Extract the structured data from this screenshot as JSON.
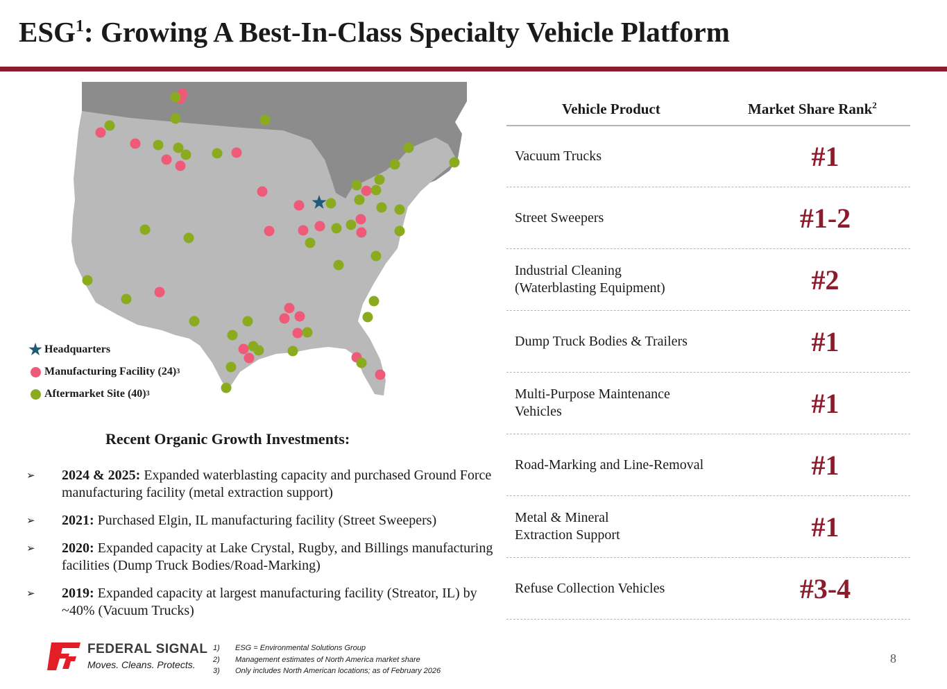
{
  "title": {
    "main": "ESG",
    "sup": "1",
    "rest": ": Growing A Best-In-Class Specialty Vehicle Platform"
  },
  "colors": {
    "brand": "#8c1c2c",
    "manufacturing": "#ef5a78",
    "aftermarket": "#8aab1e",
    "headquarters": "#1f5a78",
    "us_land": "#b9b9b9",
    "canada": "#8c8c8c"
  },
  "map": {
    "legend": [
      {
        "label": "Headquarters",
        "sup": "",
        "icon": "star-icon"
      },
      {
        "label": "Manufacturing Facility (24)",
        "sup": "3",
        "icon": "pink-dot-icon"
      },
      {
        "label": "Aftermarket Site (40)",
        "sup": "3",
        "icon": "green-dot-icon"
      }
    ]
  },
  "growth": {
    "title": "Recent Organic Growth Investments:",
    "items": [
      {
        "year": "2024 & 2025:",
        "text": " Expanded waterblasting capacity and purchased Ground Force manufacturing facility (metal extraction support)"
      },
      {
        "year": "2021:",
        "text": " Purchased Elgin, IL manufacturing facility (Street Sweepers)"
      },
      {
        "year": "2020:",
        "text": " Expanded capacity at Lake Crystal, Rugby, and Billings manufacturing facilities (Dump Truck Bodies/Road-Marking)"
      },
      {
        "year": "2019:",
        "text": " Expanded capacity at largest manufacturing facility (Streator, IL) by ~40% (Vacuum Trucks)"
      }
    ]
  },
  "table": {
    "col1": "Vehicle Product",
    "col2": "Market Share Rank",
    "col2_sup": "2",
    "rows": [
      {
        "product": "Vacuum Trucks",
        "rank": "#1"
      },
      {
        "product": "Street Sweepers",
        "rank": "#1-2"
      },
      {
        "product": "Industrial Cleaning (Waterblasting Equipment)",
        "rank": "#2"
      },
      {
        "product": "Dump Truck Bodies & Trailers",
        "rank": "#1"
      },
      {
        "product": "Multi-Purpose Maintenance Vehicles",
        "rank": "#1"
      },
      {
        "product": "Road-Marking and Line-Removal",
        "rank": "#1"
      },
      {
        "product": "Metal & Mineral Extraction Support",
        "rank": "#1"
      },
      {
        "product": "Refuse Collection Vehicles",
        "rank": "#3-4"
      }
    ]
  },
  "logo": {
    "name": "FEDERAL SIGNAL",
    "tagline": "Moves. Cleans. Protects."
  },
  "footnotes": [
    {
      "num": "1)",
      "text": "ESG = Environmental Solutions Group"
    },
    {
      "num": "2)",
      "text": "Management estimates of North America market share"
    },
    {
      "num": "3)",
      "text": "Only includes North American locations; as of February 2026"
    }
  ],
  "page_number": "8"
}
